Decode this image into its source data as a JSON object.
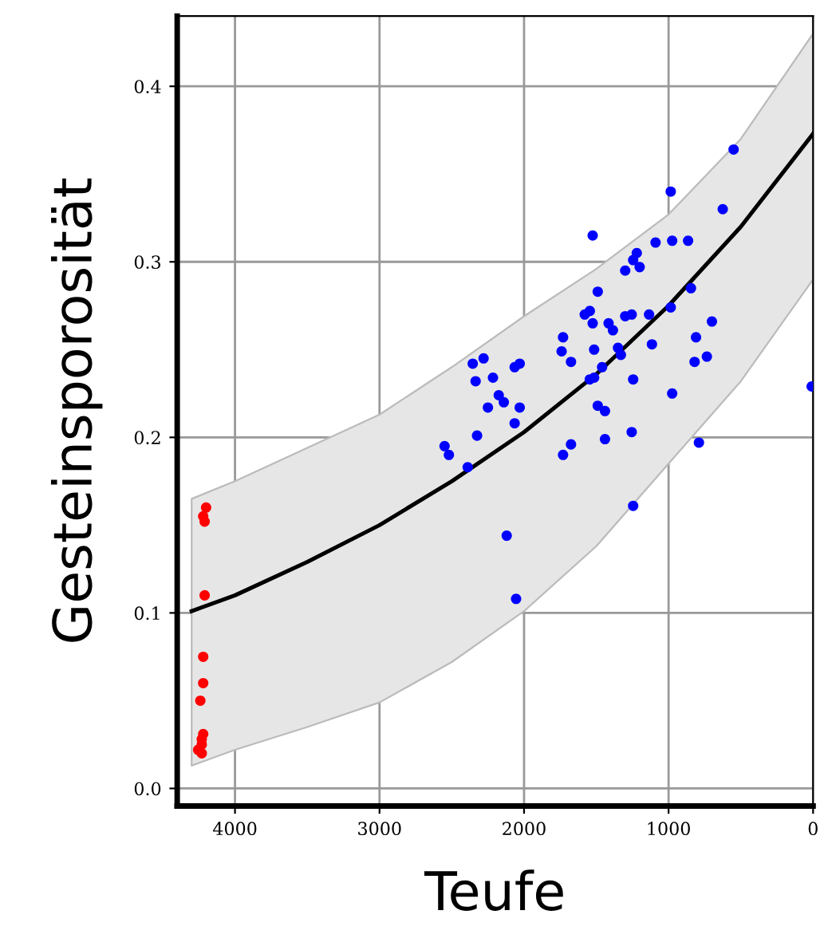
{
  "chart_data": {
    "type": "scatter",
    "xlabel": "Teufe",
    "ylabel": "Gesteinsporosität",
    "xlim": [
      4400,
      0
    ],
    "ylim": [
      -0.01,
      0.44
    ],
    "xticks": [
      4000,
      3000,
      2000,
      1000,
      0
    ],
    "yticks": [
      {
        "value": 0,
        "label": "0.0"
      },
      {
        "value": 0.1,
        "label": "0.1"
      },
      {
        "value": 0.2,
        "label": "0.2"
      },
      {
        "value": 0.3,
        "label": "0.3"
      },
      {
        "value": 0.4,
        "label": "0.4"
      }
    ],
    "grid": true,
    "series": [
      {
        "type": "line",
        "color": "#000000",
        "marker": "none",
        "x": [
          4300,
          4000,
          3500,
          3000,
          2500,
          2000,
          1500,
          1000,
          500,
          0
        ],
        "values": [
          0.101,
          0.11,
          0.129,
          0.15,
          0.175,
          0.203,
          0.236,
          0.275,
          0.32,
          0.373
        ],
        "lower": [
          0.013,
          0.022,
          0.035,
          0.049,
          0.072,
          0.101,
          0.138,
          0.185,
          0.232,
          0.29
        ],
        "upper": [
          0.165,
          0.175,
          0.194,
          0.213,
          0.24,
          0.269,
          0.296,
          0.327,
          0.37,
          0.43
        ]
      },
      {
        "color": "#0000ff",
        "marker": "circle",
        "x": [
          550,
          985,
          625,
          1525,
          1220,
          1090,
          975,
          865,
          1245,
          1300,
          1200,
          1490,
          845,
          985,
          1580,
          1545,
          1135,
          1300,
          1255,
          1525,
          1415,
          1385,
          700,
          1730,
          810,
          1740,
          1515,
          1350,
          1330,
          1115,
          820,
          735,
          1675,
          1460,
          1515,
          1545,
          1245,
          2355,
          2280,
          2335,
          2215,
          2065,
          2030,
          975,
          10,
          2175,
          2140,
          2250,
          2030,
          1490,
          1440,
          2065,
          2325,
          2550,
          2520,
          2390,
          1730,
          1675,
          1440,
          1255,
          790,
          1245,
          2120,
          2055
        ],
        "values": [
          0.364,
          0.34,
          0.33,
          0.315,
          0.305,
          0.311,
          0.312,
          0.312,
          0.301,
          0.295,
          0.297,
          0.283,
          0.285,
          0.274,
          0.27,
          0.272,
          0.27,
          0.269,
          0.27,
          0.265,
          0.265,
          0.261,
          0.266,
          0.257,
          0.257,
          0.249,
          0.25,
          0.251,
          0.247,
          0.253,
          0.243,
          0.246,
          0.243,
          0.24,
          0.234,
          0.233,
          0.233,
          0.242,
          0.245,
          0.232,
          0.234,
          0.24,
          0.242,
          0.225,
          0.229,
          0.224,
          0.22,
          0.217,
          0.217,
          0.218,
          0.215,
          0.208,
          0.201,
          0.195,
          0.19,
          0.183,
          0.19,
          0.196,
          0.199,
          0.203,
          0.197,
          0.161,
          0.144,
          0.108
        ]
      },
      {
        "color": "#ff0000",
        "marker": "circle",
        "x": [
          4200,
          4210,
          4220,
          4210,
          4220,
          4220,
          4240,
          4220,
          4230,
          4230,
          4255,
          4230
        ],
        "values": [
          0.16,
          0.152,
          0.155,
          0.11,
          0.075,
          0.06,
          0.05,
          0.031,
          0.028,
          0.025,
          0.022,
          0.02
        ]
      }
    ]
  }
}
